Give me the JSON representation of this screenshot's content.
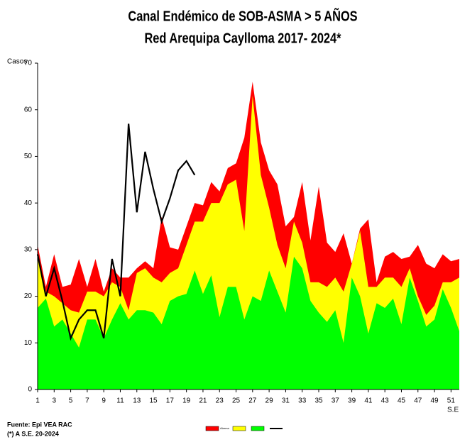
{
  "chart_data": {
    "type": "area",
    "title": "Canal Endémico de SOB-ASMA > 5 AÑOS",
    "subtitle": "Red Arequipa Caylloma 2017- 2024*",
    "y_label": "Casos",
    "x_label": "S.E",
    "notes": [
      "Fuente: Epi VEA RAC",
      "(*) A S.E. 20-2024"
    ],
    "x": [
      1,
      2,
      3,
      4,
      5,
      6,
      7,
      8,
      9,
      10,
      11,
      12,
      13,
      14,
      15,
      16,
      17,
      18,
      19,
      20,
      21,
      22,
      23,
      24,
      25,
      26,
      27,
      28,
      29,
      30,
      31,
      32,
      33,
      34,
      35,
      36,
      37,
      38,
      39,
      40,
      41,
      42,
      43,
      44,
      45,
      46,
      47,
      48,
      49,
      50,
      51,
      52
    ],
    "xlim": [
      1,
      52
    ],
    "xticks": [
      1,
      3,
      5,
      7,
      9,
      11,
      13,
      15,
      17,
      19,
      21,
      23,
      25,
      27,
      29,
      31,
      33,
      35,
      37,
      39,
      41,
      43,
      45,
      47,
      49,
      51
    ],
    "ylim": [
      0,
      70
    ],
    "yticks": [
      0,
      10,
      20,
      30,
      40,
      50,
      60,
      70
    ],
    "series": [
      {
        "name": "Alarma",
        "color": "#ff0000",
        "kind": "area",
        "values": [
          31,
          22,
          29,
          22,
          22.5,
          28,
          22,
          28,
          21,
          26,
          24,
          24,
          26,
          27.5,
          26,
          37,
          30.5,
          30,
          35,
          40,
          39.5,
          44.5,
          42.5,
          47.5,
          48.5,
          54,
          66,
          53,
          47,
          44,
          35,
          37,
          44.5,
          32,
          43.5,
          31.5,
          29.5,
          33.5,
          27,
          34.5,
          36.5,
          23,
          28.5,
          29.5,
          28,
          28.5,
          31,
          27,
          26,
          29,
          27.5,
          28
        ]
      },
      {
        "color": "#ffff00",
        "kind": "area",
        "values": [
          28,
          21,
          20,
          18.5,
          17,
          16.5,
          21,
          21,
          20,
          23,
          22,
          17,
          25,
          26,
          24,
          23,
          25,
          26,
          31,
          36,
          36,
          40,
          40,
          44,
          45,
          34,
          63,
          46,
          39,
          31,
          26,
          36,
          31.5,
          23,
          23,
          22,
          24,
          21,
          27,
          34,
          22,
          22,
          24,
          24,
          22,
          26,
          20,
          16,
          18,
          23,
          23,
          24
        ]
      },
      {
        "color": "#00ff00",
        "kind": "area",
        "values": [
          17.5,
          19.5,
          13.5,
          15,
          12,
          9,
          15,
          15,
          11,
          15,
          18.5,
          15,
          17,
          17,
          16.5,
          14,
          19,
          20,
          20.5,
          25.5,
          20.5,
          24.5,
          15.5,
          22,
          22,
          15,
          20,
          19,
          25.5,
          21,
          16.5,
          28.5,
          26,
          19,
          16.5,
          14.5,
          17,
          10,
          24,
          20,
          12,
          18.5,
          17.5,
          19.5,
          14,
          24,
          19,
          13.5,
          15,
          21.5,
          17.5,
          12.5
        ]
      },
      {
        "color": "#000000",
        "kind": "line",
        "values": [
          29,
          20,
          26,
          19,
          11,
          15,
          17,
          17,
          11,
          28,
          20,
          57,
          38,
          51,
          43,
          36,
          41,
          47,
          49,
          46,
          null,
          null,
          null,
          null,
          null,
          null,
          null,
          null,
          null,
          null,
          null,
          null,
          null,
          null,
          null,
          null,
          null,
          null,
          null,
          null,
          null,
          null,
          null,
          null,
          null,
          null,
          null,
          null,
          null,
          null,
          null,
          null
        ]
      }
    ]
  }
}
